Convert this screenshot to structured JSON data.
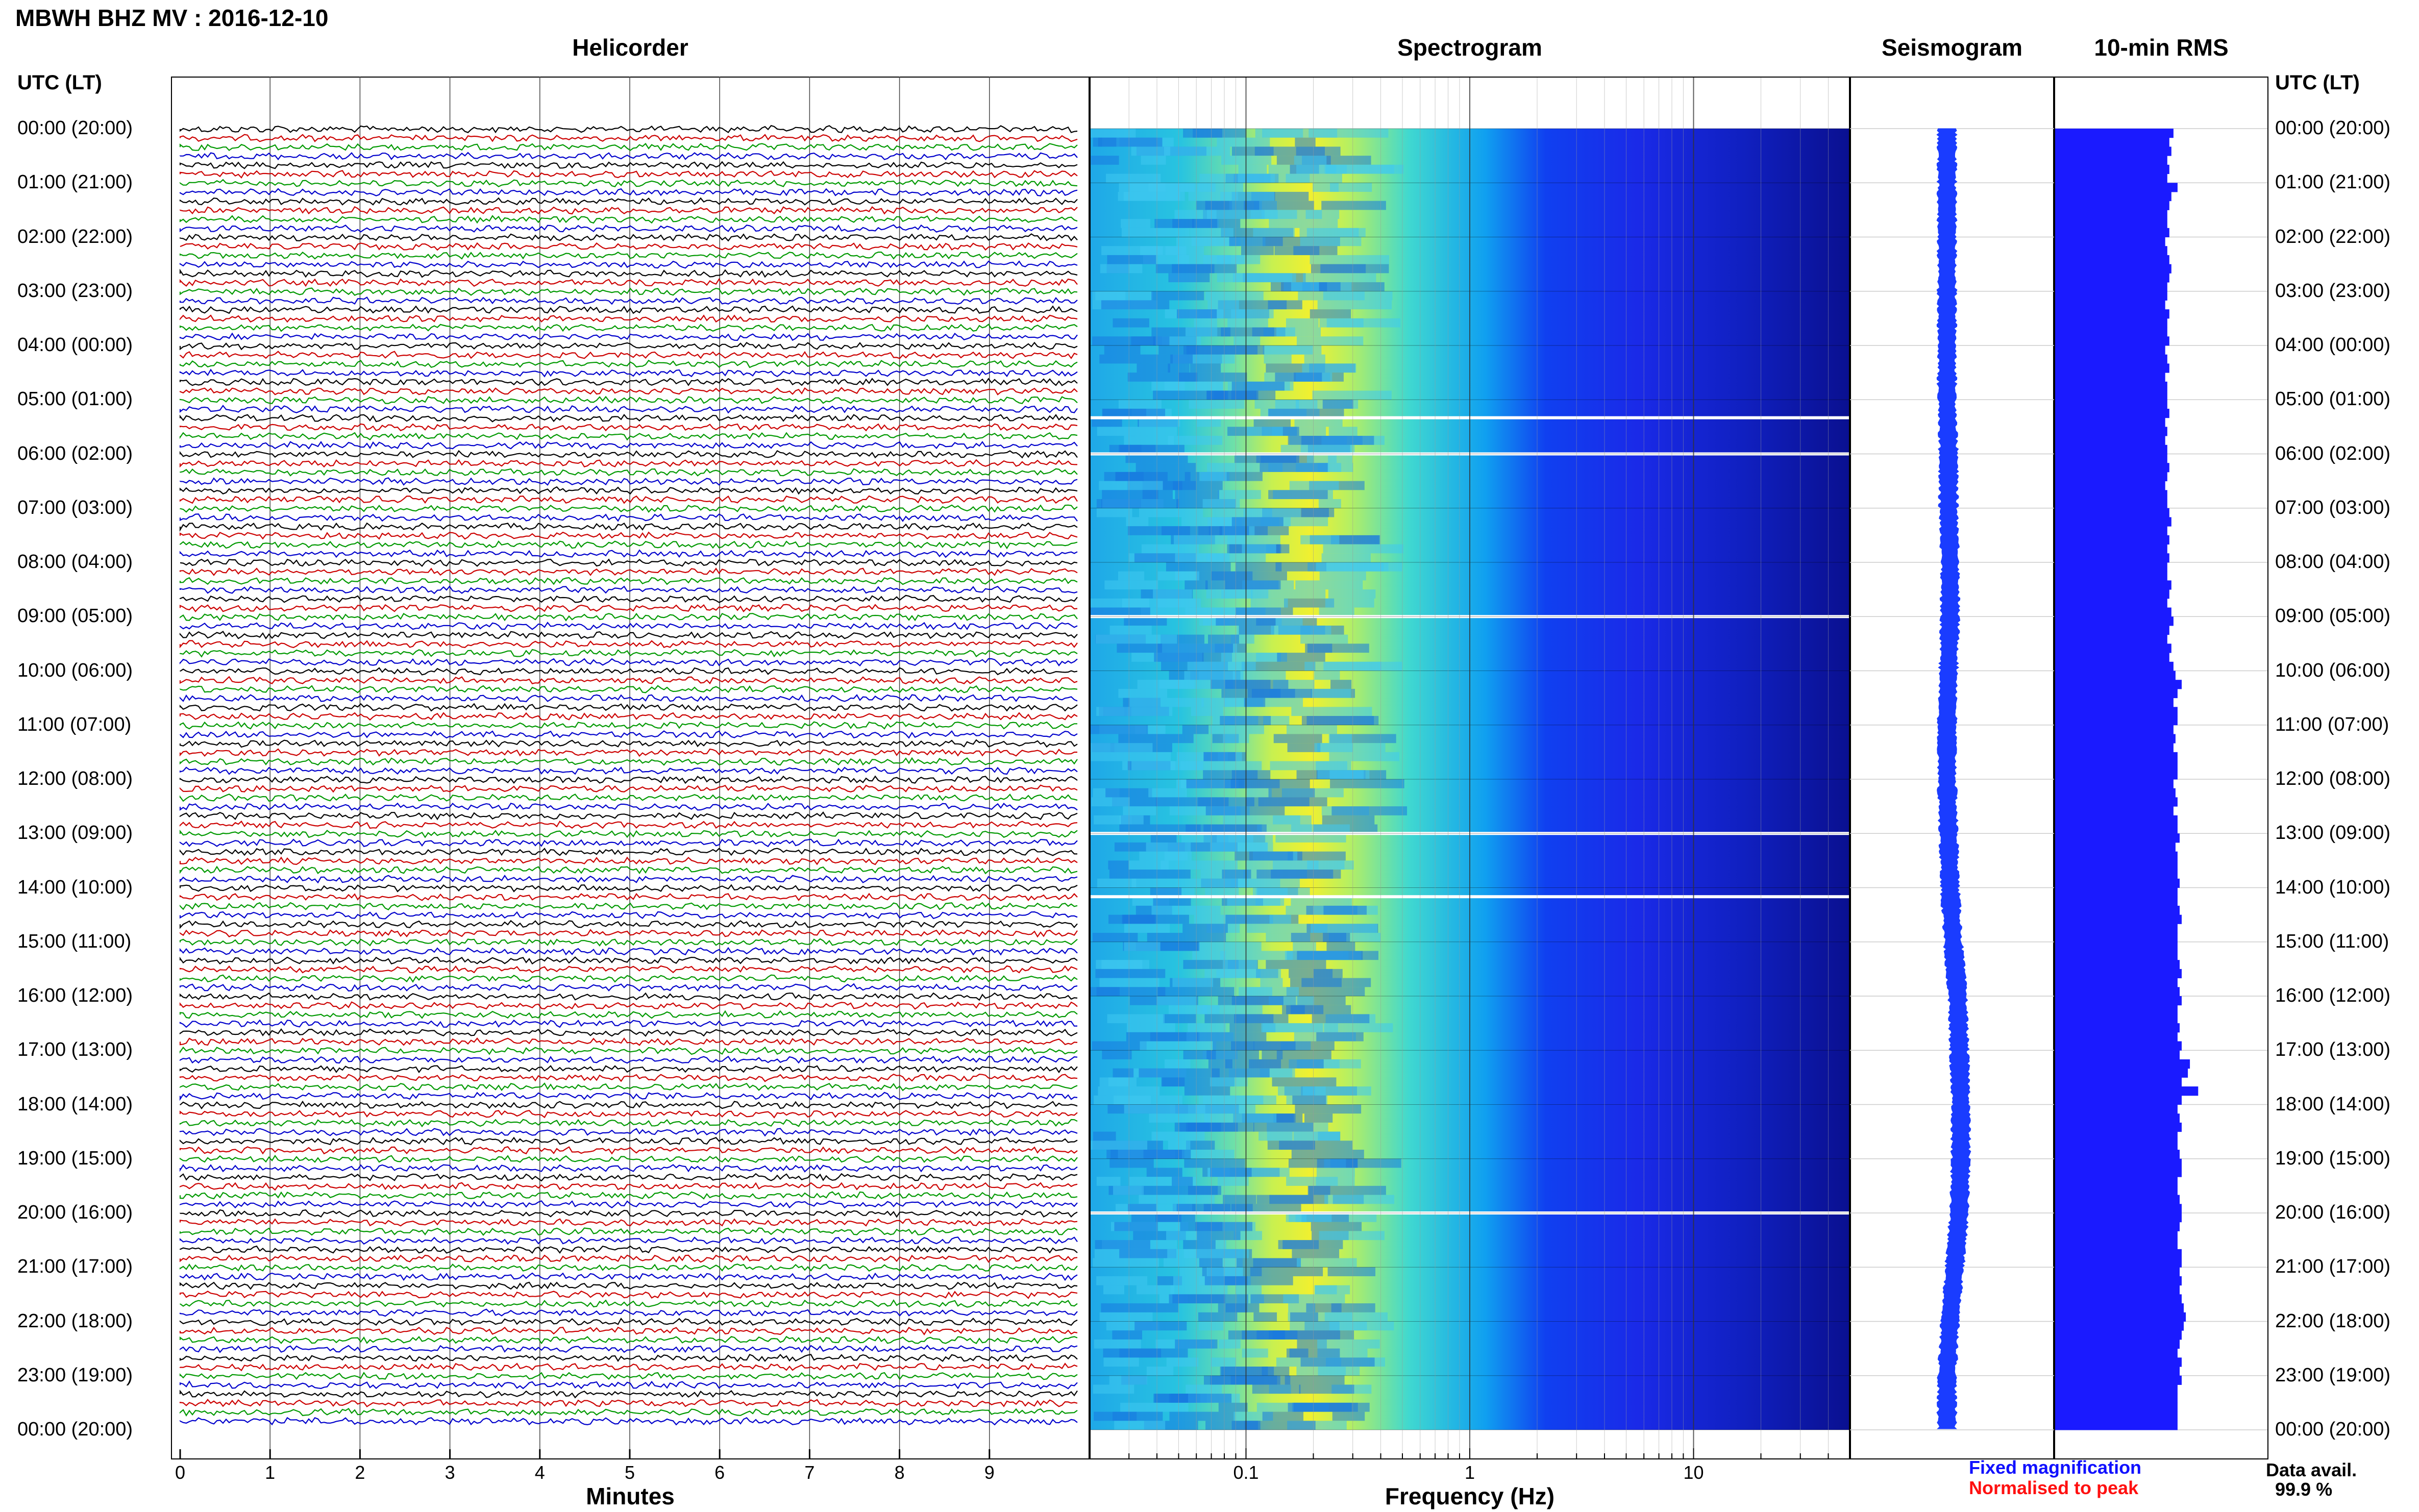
{
  "header": {
    "title": "MBWH BHZ MV : 2016-12-10"
  },
  "panels": {
    "helicorder": "Helicorder",
    "spectrogram": "Spectrogram",
    "seismogram": "Seismogram",
    "rms": "10-min RMS"
  },
  "time_axis": {
    "heading": "UTC (LT)",
    "labels": [
      "00:00 (20:00)",
      "01:00 (21:00)",
      "02:00 (22:00)",
      "03:00 (23:00)",
      "04:00 (00:00)",
      "05:00 (01:00)",
      "06:00 (02:00)",
      "07:00 (03:00)",
      "08:00 (04:00)",
      "09:00 (05:00)",
      "10:00 (06:00)",
      "11:00 (07:00)",
      "12:00 (08:00)",
      "13:00 (09:00)",
      "14:00 (10:00)",
      "15:00 (11:00)",
      "16:00 (12:00)",
      "17:00 (13:00)",
      "18:00 (14:00)",
      "19:00 (15:00)",
      "20:00 (16:00)",
      "21:00 (17:00)",
      "22:00 (18:00)",
      "23:00 (19:00)",
      "00:00 (20:00)"
    ]
  },
  "legend": {
    "fixed": "Fixed magnification",
    "normalised": "Normalised to peak",
    "fixed_color": "#1010ff",
    "normalised_color": "#ff1010"
  },
  "availability": {
    "label": "Data avail.",
    "value": "99.9 %"
  },
  "colors": {
    "trace_cycle": [
      "#000000",
      "#cc0000",
      "#009900",
      "#0000cc"
    ],
    "rms_bar": "#1a1aff",
    "seismogram": "#1a3cff"
  },
  "chart_data": [
    {
      "type": "line",
      "title": "Helicorder",
      "xlabel": "Minutes",
      "x_ticks": [
        "0",
        "1",
        "2",
        "3",
        "4",
        "5",
        "6",
        "7",
        "8",
        "9"
      ],
      "xlim": [
        0,
        10
      ],
      "traces": 144,
      "minutes_per_trace": 10,
      "trace_color_cycle": [
        "black",
        "red",
        "green",
        "blue"
      ]
    },
    {
      "type": "heatmap",
      "title": "Spectrogram",
      "xlabel": "Frequency (Hz)",
      "x_scale": "log",
      "x_ticks": [
        "0.1",
        "1",
        "10"
      ],
      "xlim": [
        0.02,
        50
      ],
      "peak_frequency_hz": 0.25,
      "colormap": "jet",
      "data_gaps_utc": [
        "05:20",
        "06:00",
        "09:00",
        "13:00",
        "14:10",
        "20:00"
      ]
    },
    {
      "type": "line",
      "title": "Seismogram",
      "description_values": "amplitude drift over the day",
      "drift_series": [
        0,
        0,
        0,
        0,
        0,
        0,
        0.05,
        0.05,
        0.1,
        0.1,
        0.05,
        0,
        0,
        0.05,
        0.1,
        0.2,
        0.35,
        0.4,
        0.45,
        0.45,
        0.4,
        0.25,
        0.1,
        0,
        0
      ]
    },
    {
      "type": "bar",
      "title": "10-min RMS",
      "orientation": "horizontal",
      "bins": 144,
      "relative_values": [
        0.58,
        0.56,
        0.57,
        0.55,
        0.56,
        0.55,
        0.6,
        0.57,
        0.56,
        0.55,
        0.55,
        0.56,
        0.54,
        0.55,
        0.56,
        0.57,
        0.56,
        0.55,
        0.55,
        0.54,
        0.56,
        0.55,
        0.55,
        0.56,
        0.54,
        0.55,
        0.56,
        0.54,
        0.55,
        0.55,
        0.55,
        0.56,
        0.54,
        0.55,
        0.54,
        0.55,
        0.55,
        0.56,
        0.55,
        0.54,
        0.55,
        0.55,
        0.56,
        0.57,
        0.55,
        0.56,
        0.55,
        0.56,
        0.55,
        0.55,
        0.57,
        0.56,
        0.55,
        0.57,
        0.58,
        0.56,
        0.55,
        0.57,
        0.56,
        0.58,
        0.59,
        0.62,
        0.6,
        0.58,
        0.6,
        0.6,
        0.58,
        0.59,
        0.58,
        0.6,
        0.6,
        0.6,
        0.58,
        0.59,
        0.6,
        0.58,
        0.6,
        0.6,
        0.61,
        0.59,
        0.6,
        0.6,
        0.6,
        0.61,
        0.6,
        0.6,
        0.61,
        0.62,
        0.6,
        0.6,
        0.6,
        0.6,
        0.61,
        0.62,
        0.6,
        0.61,
        0.62,
        0.6,
        0.6,
        0.61,
        0.6,
        0.62,
        0.61,
        0.66,
        0.65,
        0.62,
        0.7,
        0.62,
        0.6,
        0.61,
        0.62,
        0.6,
        0.6,
        0.61,
        0.62,
        0.62,
        0.6,
        0.6,
        0.61,
        0.62,
        0.62,
        0.61,
        0.6,
        0.6,
        0.62,
        0.62,
        0.61,
        0.62,
        0.61,
        0.62,
        0.63,
        0.64,
        0.63,
        0.62,
        0.61,
        0.6,
        0.62,
        0.61,
        0.62,
        0.6,
        0.6,
        0.6,
        0.6,
        0.6
      ]
    }
  ]
}
